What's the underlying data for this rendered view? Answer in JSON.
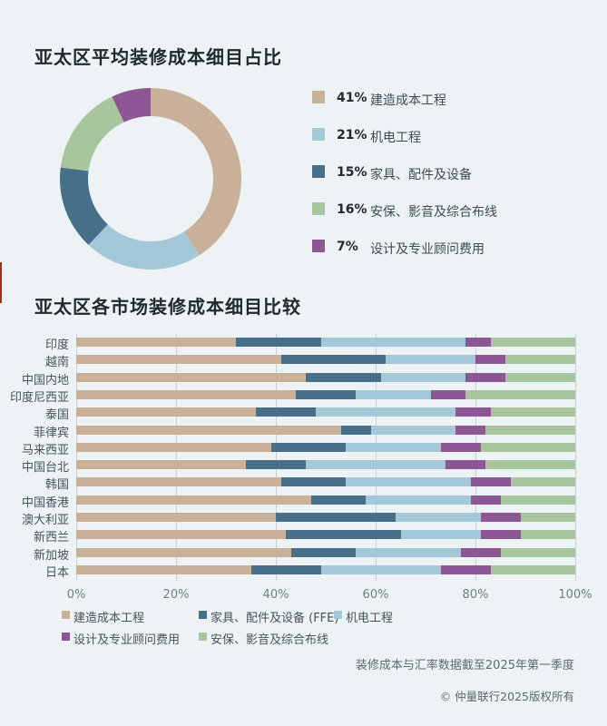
{
  "donut_section": {
    "title": "亚太区平均装修成本细目占比",
    "legend": [
      {
        "pct": "41%",
        "label": "建造成本工程",
        "color": "#c9b199"
      },
      {
        "pct": "21%",
        "label": "机电工程",
        "color": "#a5c8d8"
      },
      {
        "pct": "15%",
        "label": "家具、配件及设备",
        "color": "#46708a"
      },
      {
        "pct": "16%",
        "label": "安保、影音及综合布线",
        "color": "#a8c69e"
      },
      {
        "pct": "7%",
        "label": "设计及专业顾问费用",
        "color": "#8c5794"
      }
    ]
  },
  "bar_section": {
    "title": "亚太区各市场装修成本细目比较",
    "legend_row1": [
      {
        "label": "建造成本工程",
        "color": "#c9b199"
      },
      {
        "label": "家具、配件及设备 (FFE)",
        "color": "#46708a"
      },
      {
        "label": "机电工程",
        "color": "#a5c8d8"
      }
    ],
    "legend_row2": [
      {
        "label": "设计及专业顾问费用",
        "color": "#8c5794"
      },
      {
        "label": "安保、影音及综合布线",
        "color": "#a8c69e"
      }
    ],
    "footnote": "装修成本与汇率数据截至2025年第一季度",
    "copyright": "© 仲量联行2025版权所有"
  },
  "chart_data": [
    {
      "type": "pie",
      "subtype": "donut",
      "title": "亚太区平均装修成本细目占比",
      "labels": [
        "建造成本工程",
        "机电工程",
        "家具、配件及设备",
        "安保、影音及综合布线",
        "设计及专业顾问费用"
      ],
      "values": [
        41,
        21,
        15,
        16,
        7
      ],
      "colors": [
        "#c9b199",
        "#a5c8d8",
        "#46708a",
        "#a8c69e",
        "#8c5794"
      ],
      "start_angle": "top",
      "direction": "clockwise",
      "legend_position": "right"
    },
    {
      "type": "bar",
      "subtype": "horizontal_stacked",
      "title": "亚太区各市场装修成本细目比较",
      "categories": [
        "印度",
        "越南",
        "中国内地",
        "印度尼西亚",
        "泰国",
        "菲律宾",
        "马来西亚",
        "中国台北",
        "韩国",
        "中国香港",
        "澳大利亚",
        "新西兰",
        "新加坡",
        "日本"
      ],
      "series": [
        {
          "name": "建造成本工程",
          "color": "#c9b199",
          "values": [
            32,
            41,
            46,
            44,
            36,
            53,
            39,
            34,
            41,
            47,
            40,
            42,
            43,
            35
          ]
        },
        {
          "name": "家具、配件及设备 (FFE)",
          "color": "#46708a",
          "values": [
            17,
            21,
            15,
            12,
            12,
            6,
            15,
            12,
            13,
            11,
            24,
            23,
            13,
            14
          ]
        },
        {
          "name": "机电工程",
          "color": "#a5c8d8",
          "values": [
            29,
            18,
            17,
            15,
            28,
            17,
            19,
            28,
            25,
            21,
            17,
            16,
            21,
            24
          ]
        },
        {
          "name": "设计及专业顾问费用",
          "color": "#8c5794",
          "values": [
            5,
            6,
            8,
            7,
            7,
            6,
            8,
            8,
            8,
            6,
            8,
            8,
            8,
            10
          ]
        },
        {
          "name": "安保、影音及综合布线",
          "color": "#a8c69e",
          "values": [
            17,
            14,
            14,
            22,
            17,
            18,
            19,
            18,
            13,
            15,
            11,
            11,
            15,
            17
          ]
        }
      ],
      "x_ticks": [
        "0%",
        "20%",
        "40%",
        "60%",
        "80%",
        "100%"
      ],
      "xlim": [
        0,
        100
      ],
      "grid": "vertical",
      "legend_position": "bottom"
    }
  ]
}
